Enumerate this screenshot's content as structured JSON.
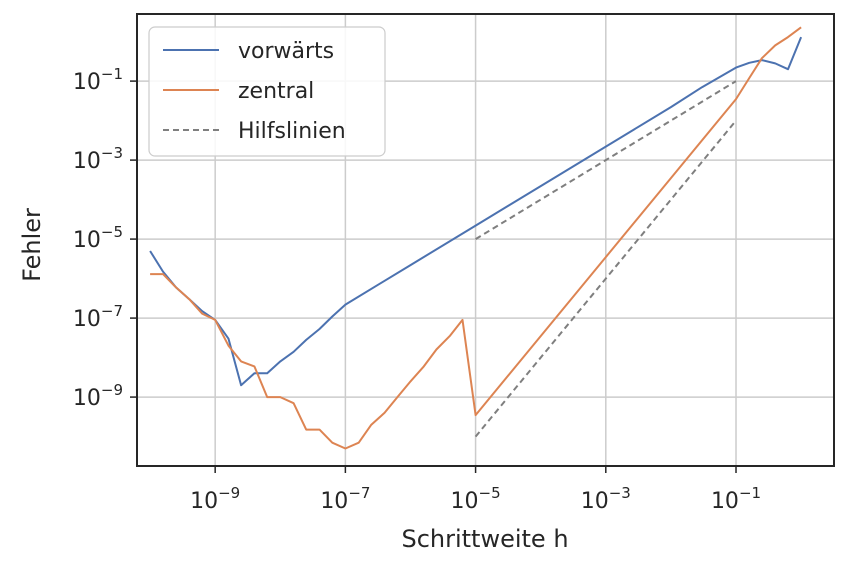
{
  "chart_data": {
    "type": "line",
    "xscale": "log",
    "yscale": "log",
    "xlabel": "Schrittweite h",
    "ylabel": "Fehler",
    "xlim": [
      6.3e-11,
      3.2
    ],
    "ylim": [
      1.8e-11,
      5.0
    ],
    "xticks": [
      1e-09,
      1e-07,
      1e-05,
      0.001,
      0.1
    ],
    "xtick_labels": [
      {
        "base": "10",
        "exp": "−9"
      },
      {
        "base": "10",
        "exp": "−7"
      },
      {
        "base": "10",
        "exp": "−5"
      },
      {
        "base": "10",
        "exp": "−3"
      },
      {
        "base": "10",
        "exp": "−1"
      }
    ],
    "yticks": [
      1e-09,
      1e-07,
      1e-05,
      0.001,
      0.1
    ],
    "ytick_labels": [
      {
        "base": "10",
        "exp": "−9"
      },
      {
        "base": "10",
        "exp": "−7"
      },
      {
        "base": "10",
        "exp": "−5"
      },
      {
        "base": "10",
        "exp": "−3"
      },
      {
        "base": "10",
        "exp": "−1"
      }
    ],
    "grid": true,
    "legend_position": "top-left",
    "series": [
      {
        "name": "vorwärts",
        "color": "#4c72b0",
        "dash": "solid",
        "x": [
          1e-10,
          1.58e-10,
          2.5e-10,
          4e-10,
          6.3e-10,
          1e-09,
          1.6e-09,
          2.5e-09,
          4e-09,
          6.3e-09,
          1e-08,
          1.6e-08,
          2.5e-08,
          4e-08,
          6.3e-08,
          1e-07,
          1e-06,
          1e-05,
          0.0001,
          0.001,
          0.01,
          0.03,
          0.1,
          0.16,
          0.25,
          0.4,
          0.63,
          1
        ],
        "y": [
          5e-06,
          1.5e-06,
          6e-07,
          3e-07,
          1.5e-07,
          9e-08,
          3e-08,
          2e-09,
          4e-09,
          4e-09,
          8e-09,
          1.4e-08,
          2.8e-08,
          5.3e-08,
          1.1e-07,
          2.2e-07,
          2.2e-06,
          2.2e-05,
          0.00022,
          0.0022,
          0.022,
          0.07,
          0.22,
          0.29,
          0.34,
          0.28,
          0.2,
          1.3
        ]
      },
      {
        "name": "zentral",
        "color": "#dd8452",
        "dash": "solid",
        "x": [
          1e-10,
          1.58e-10,
          2.5e-10,
          4e-10,
          6.3e-10,
          1e-09,
          1.6e-09,
          2.5e-09,
          4e-09,
          6.3e-09,
          1e-08,
          1.6e-08,
          2.5e-08,
          4e-08,
          6.3e-08,
          1e-07,
          1.6e-07,
          2.5e-07,
          4e-07,
          6.3e-07,
          1e-06,
          1.6e-06,
          2.5e-06,
          4e-06,
          6.3e-06,
          1e-05,
          0.0001,
          0.001,
          0.01,
          0.1,
          0.16,
          0.25,
          0.4,
          0.63,
          1
        ],
        "y": [
          1.3e-06,
          1.3e-06,
          6e-07,
          3e-07,
          1.3e-07,
          9e-08,
          2e-08,
          8e-09,
          6e-09,
          1e-09,
          1e-09,
          7e-10,
          1.5e-10,
          1.5e-10,
          7e-11,
          5e-11,
          7e-11,
          2e-10,
          4e-10,
          1e-09,
          2.5e-09,
          6e-09,
          1.6e-08,
          3.5e-08,
          9e-08,
          3.5e-10,
          3.5e-08,
          3.5e-06,
          0.00035,
          0.035,
          0.12,
          0.38,
          0.8,
          1.3,
          2.3
        ]
      },
      {
        "name": "Hilfslinien",
        "color": "#7f7f7f",
        "dash": "dashed",
        "segments": [
          {
            "x": [
              1e-05,
              0.1
            ],
            "y": [
              1e-05,
              0.1
            ]
          },
          {
            "x": [
              1e-05,
              0.1
            ],
            "y": [
              1e-10,
              0.01
            ]
          }
        ]
      }
    ]
  }
}
